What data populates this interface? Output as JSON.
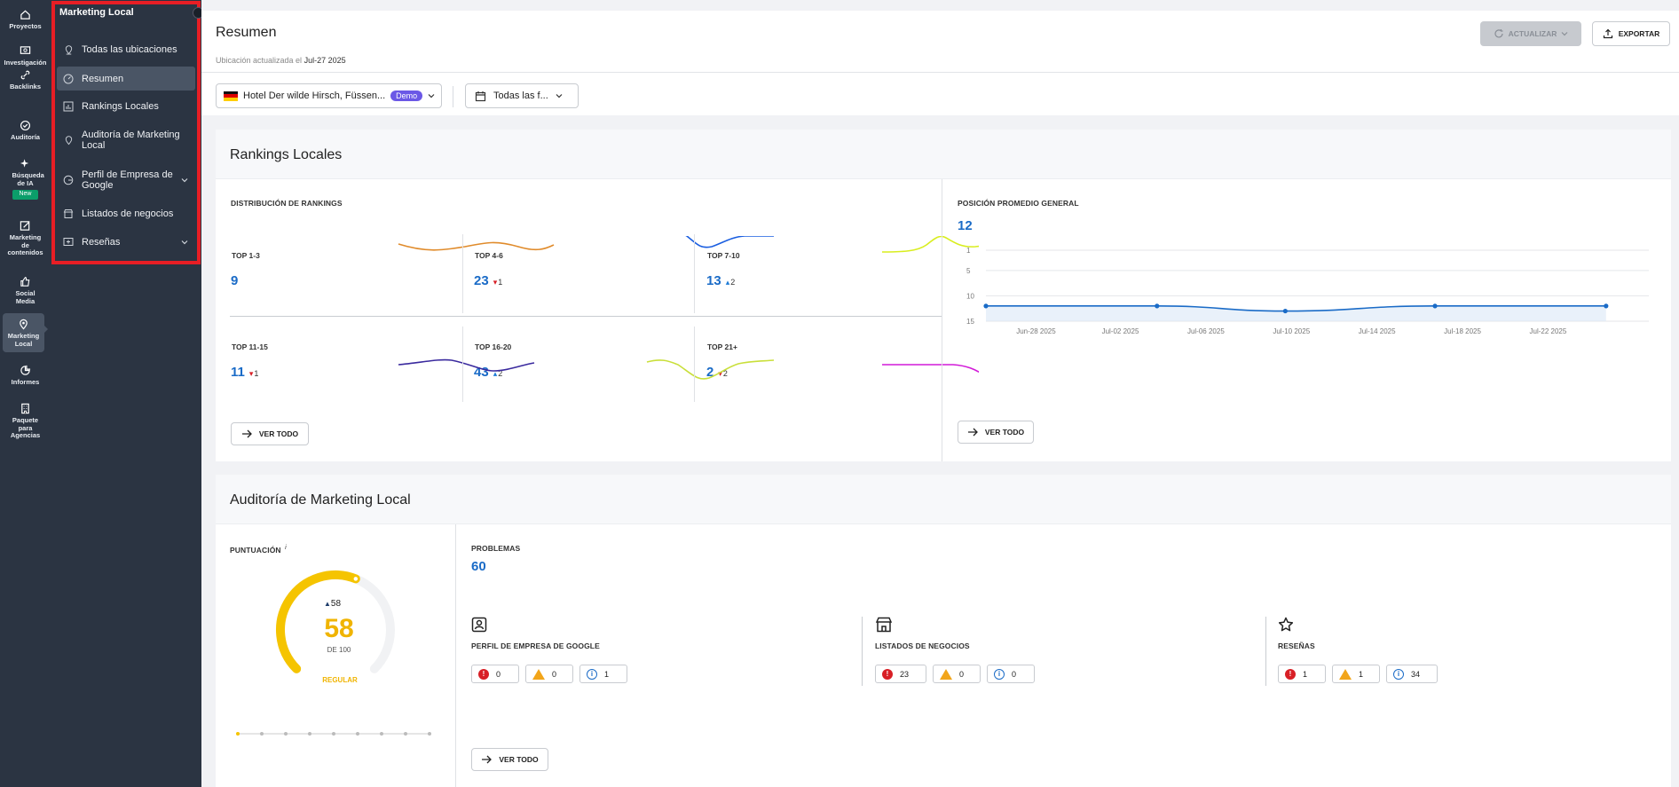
{
  "rail": {
    "items": [
      {
        "label": "Proyectos"
      },
      {
        "label": "Investigación"
      },
      {
        "label": "Backlinks"
      },
      {
        "label": "Auditoría"
      },
      {
        "label": "Búsqueda de IA",
        "badge": "New"
      },
      {
        "label": "Marketing de contenidos"
      },
      {
        "label": "Social Media"
      },
      {
        "label": "Marketing Local"
      },
      {
        "label": "Informes"
      },
      {
        "label": "Paquete para Agencias"
      }
    ]
  },
  "sidebar": {
    "title": "Marketing Local",
    "items": [
      {
        "label": "Todas las ubicaciones",
        "icon": "location-pin-icon"
      },
      {
        "label": "Resumen",
        "icon": "dashboard-icon"
      },
      {
        "label": "Rankings Locales",
        "icon": "bar-chart-icon"
      },
      {
        "label": "Auditoría de Marketing Local",
        "icon": "map-pin-icon"
      },
      {
        "label": "Perfil de Empresa de Google",
        "icon": "google-icon"
      },
      {
        "label": "Listados de negocios",
        "icon": "store-icon"
      },
      {
        "label": "Reseñas",
        "icon": "review-icon"
      }
    ]
  },
  "header": {
    "title": "Resumen",
    "updated_prefix": "Ubicación actualizada el",
    "updated_date": "Jul-27 2025",
    "update_button": "ACTUALIZAR",
    "export_button": "EXPORTAR"
  },
  "filters": {
    "location": "Hotel Der wilde Hirsch, Füssen...",
    "demo_badge": "Demo",
    "dates": "Todas las f..."
  },
  "rankings": {
    "title": "Rankings Locales",
    "distribution_label": "DISTRIBUCIÓN DE RANKINGS",
    "cells": [
      {
        "label": "TOP 1-3",
        "value": "9",
        "delta": "",
        "dir": "",
        "color": "#e08b2b"
      },
      {
        "label": "TOP 4-6",
        "value": "23",
        "delta": "1",
        "dir": "down",
        "color": "#1a5ee0"
      },
      {
        "label": "TOP 7-10",
        "value": "13",
        "delta": "2",
        "dir": "up",
        "color": "#d9ee1f"
      },
      {
        "label": "TOP 11-15",
        "value": "11",
        "delta": "1",
        "dir": "down",
        "color": "#3a2a9e"
      },
      {
        "label": "TOP 16-20",
        "value": "43",
        "delta": "2",
        "dir": "up",
        "color": "#c9df3a"
      },
      {
        "label": "TOP 21+",
        "value": "2",
        "delta": "2",
        "dir": "down",
        "color": "#d21ad8"
      }
    ],
    "ver_todo": "VER TODO",
    "avg_label": "POSICIÓN PROMEDIO GENERAL",
    "avg_value": "12",
    "ver_todo_2": "VER TODO"
  },
  "chart_data": {
    "type": "line",
    "title": "POSICIÓN PROMEDIO GENERAL",
    "x": [
      "Jun-28 2025",
      "Jul-02 2025",
      "Jul-06 2025",
      "Jul-10 2025",
      "Jul-14 2025",
      "Jul-18 2025",
      "Jul-22 2025"
    ],
    "y_ticks": [
      "1",
      "5",
      "10",
      "15"
    ],
    "ylim": [
      15,
      1
    ],
    "y_inverted": true,
    "series": [
      {
        "points": [
          [
            0,
            12
          ],
          [
            8,
            12
          ],
          [
            14,
            13
          ],
          [
            21,
            12
          ],
          [
            29,
            12
          ]
        ],
        "start_date": "Jun-26 2025"
      }
    ],
    "grid": true,
    "color": "#1a6bc7"
  },
  "audit": {
    "title": "Auditoría de Marketing Local",
    "score_label": "PUNTUACIÓN",
    "info": "i",
    "score": "58",
    "score_delta": "58",
    "of_label": "DE 100",
    "rating": "REGULAR",
    "score_fraction": 0.58,
    "problems_label": "PROBLEMAS",
    "problems_value": "60",
    "groups": [
      {
        "label": "PERFIL DE EMPRESA DE GOOGLE",
        "errors": "0",
        "warnings": "0",
        "notices": "1"
      },
      {
        "label": "LISTADOS DE NEGOCIOS",
        "errors": "23",
        "warnings": "0",
        "notices": "0"
      },
      {
        "label": "RESEÑAS",
        "errors": "1",
        "warnings": "1",
        "notices": "34"
      }
    ],
    "ver_todo": "VER TODO",
    "colors": {
      "error": "#d81f26",
      "warning": "#f2a51a",
      "notice": "#1a6bc7",
      "gauge": "#f5c400"
    }
  }
}
